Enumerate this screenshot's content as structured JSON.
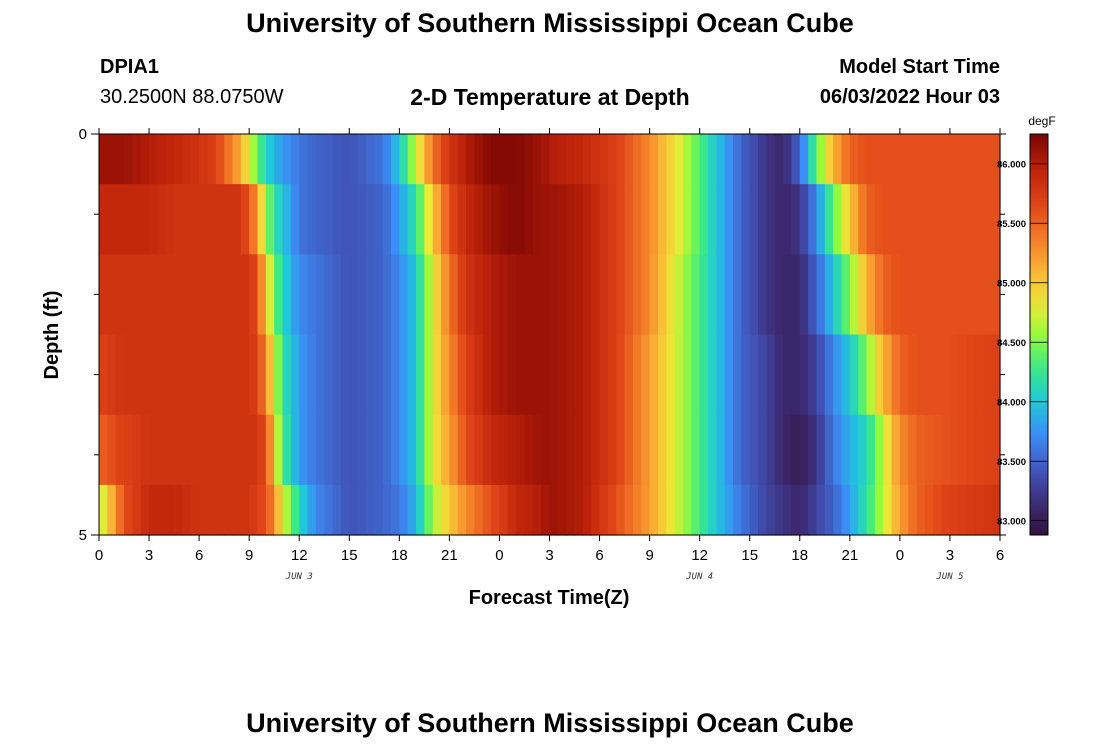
{
  "header": {
    "title": "University of Southern Mississippi Ocean Cube",
    "station_id": "DPIA1",
    "coordinates": "30.2500N  88.0750W",
    "plot_title": "2-D Temperature at Depth",
    "start_label": "Model Start Time",
    "start_time": "06/03/2022 Hour 03",
    "footer_title": "University of Southern Mississippi Ocean Cube"
  },
  "chart_data": {
    "type": "heatmap",
    "title": "2-D Temperature at Depth",
    "xlabel": "Forecast Time(Z)",
    "ylabel": "Depth (ft)",
    "x_tick_labels": [
      "0",
      "3",
      "6",
      "9",
      "12",
      "15",
      "18",
      "21",
      "0",
      "3",
      "6",
      "9",
      "12",
      "15",
      "18",
      "21",
      "0",
      "3",
      "6"
    ],
    "day_labels": [
      {
        "label": "JUN 3",
        "at_hour": 12
      },
      {
        "label": "JUN 4",
        "at_hour": 36
      },
      {
        "label": "JUN 5",
        "at_hour": 51
      }
    ],
    "x_range_hours": [
      0,
      54
    ],
    "y_range": [
      0,
      5
    ],
    "y_tick_labels": [
      "0",
      "5"
    ],
    "y_minor_ticks": [
      1,
      2,
      3,
      4
    ],
    "depth_layers": [
      0.25,
      1,
      2,
      3,
      4,
      4.75
    ],
    "colorbar": {
      "unit": "degF",
      "range": [
        82.88,
        86.25
      ],
      "tick_values": [
        83.0,
        83.5,
        84.0,
        84.5,
        85.0,
        85.5,
        86.0
      ],
      "tick_labels": [
        "83.000",
        "83.500",
        "84.000",
        "84.500",
        "85.000",
        "85.500",
        "86.000"
      ]
    },
    "series": [
      {
        "hour": 0,
        "temps": [
          86.1,
          85.9,
          85.8,
          85.7,
          85.5,
          84.6
        ]
      },
      {
        "hour": 1.5,
        "temps": [
          86.1,
          85.9,
          85.8,
          85.8,
          85.7,
          85.6
        ]
      },
      {
        "hour": 3,
        "temps": [
          86.0,
          85.9,
          85.8,
          85.8,
          85.8,
          85.9
        ]
      },
      {
        "hour": 4.5,
        "temps": [
          85.9,
          85.8,
          85.8,
          85.8,
          85.8,
          85.9
        ]
      },
      {
        "hour": 6,
        "temps": [
          85.8,
          85.8,
          85.8,
          85.8,
          85.8,
          85.8
        ]
      },
      {
        "hour": 7,
        "temps": [
          85.7,
          85.8,
          85.8,
          85.8,
          85.8,
          85.8
        ]
      },
      {
        "hour": 7.5,
        "temps": [
          85.5,
          85.8,
          85.8,
          85.8,
          85.8,
          85.8
        ]
      },
      {
        "hour": 8.3,
        "temps": [
          85.2,
          85.8,
          85.8,
          85.8,
          85.8,
          85.8
        ]
      },
      {
        "hour": 9,
        "temps": [
          84.8,
          85.6,
          85.8,
          85.8,
          85.8,
          85.8
        ]
      },
      {
        "hour": 9.5,
        "temps": [
          84.4,
          85.2,
          85.6,
          85.7,
          85.8,
          85.7
        ]
      },
      {
        "hour": 10,
        "temps": [
          84.1,
          84.6,
          85.0,
          85.3,
          85.6,
          85.6
        ]
      },
      {
        "hour": 10.5,
        "temps": [
          83.9,
          84.2,
          84.5,
          84.8,
          85.0,
          85.3
        ]
      },
      {
        "hour": 11,
        "temps": [
          83.8,
          84.0,
          84.1,
          84.2,
          84.3,
          84.8
        ]
      },
      {
        "hour": 12,
        "temps": [
          83.6,
          83.6,
          83.7,
          83.8,
          83.8,
          84.1
        ]
      },
      {
        "hour": 13,
        "temps": [
          83.5,
          83.5,
          83.6,
          83.6,
          83.6,
          83.7
        ]
      },
      {
        "hour": 15,
        "temps": [
          83.4,
          83.4,
          83.4,
          83.4,
          83.4,
          83.4
        ]
      },
      {
        "hour": 17,
        "temps": [
          83.6,
          83.5,
          83.5,
          83.5,
          83.5,
          83.5
        ]
      },
      {
        "hour": 18,
        "temps": [
          84.0,
          83.8,
          83.7,
          83.7,
          83.7,
          83.6
        ]
      },
      {
        "hour": 19,
        "temps": [
          84.7,
          84.2,
          84.0,
          84.0,
          84.0,
          83.9
        ]
      },
      {
        "hour": 20,
        "temps": [
          85.4,
          85.0,
          84.8,
          84.8,
          84.8,
          84.6
        ]
      },
      {
        "hour": 21,
        "temps": [
          85.8,
          85.6,
          85.4,
          85.3,
          85.2,
          85.0
        ]
      },
      {
        "hour": 22,
        "temps": [
          86.0,
          85.9,
          85.8,
          85.7,
          85.6,
          85.3
        ]
      },
      {
        "hour": 23.5,
        "temps": [
          86.2,
          86.1,
          86.0,
          86.0,
          85.9,
          85.6
        ]
      },
      {
        "hour": 25,
        "temps": [
          86.2,
          86.2,
          86.1,
          86.1,
          86.0,
          85.9
        ]
      },
      {
        "hour": 26.5,
        "temps": [
          86.1,
          86.1,
          86.1,
          86.1,
          86.1,
          86.0
        ]
      },
      {
        "hour": 27,
        "temps": [
          86.0,
          86.1,
          86.1,
          86.1,
          86.1,
          86.1
        ]
      },
      {
        "hour": 29,
        "temps": [
          85.9,
          86.0,
          86.0,
          86.0,
          86.0,
          86.0
        ]
      },
      {
        "hour": 31,
        "temps": [
          85.7,
          85.7,
          85.7,
          85.7,
          85.7,
          85.6
        ]
      },
      {
        "hour": 33,
        "temps": [
          85.3,
          85.3,
          85.3,
          85.2,
          85.2,
          85.2
        ]
      },
      {
        "hour": 35,
        "temps": [
          84.7,
          84.7,
          84.6,
          84.6,
          84.6,
          84.6
        ]
      },
      {
        "hour": 37,
        "temps": [
          84.0,
          84.0,
          84.0,
          84.0,
          84.0,
          84.0
        ]
      },
      {
        "hour": 38.5,
        "temps": [
          83.5,
          83.5,
          83.5,
          83.5,
          83.5,
          83.6
        ]
      },
      {
        "hour": 40,
        "temps": [
          83.2,
          83.2,
          83.2,
          83.3,
          83.3,
          83.3
        ]
      },
      {
        "hour": 41,
        "temps": [
          83.1,
          83.1,
          83.1,
          83.1,
          83.1,
          83.2
        ]
      },
      {
        "hour": 42,
        "temps": [
          83.5,
          83.2,
          83.1,
          83.1,
          83.0,
          83.1
        ]
      },
      {
        "hour": 43,
        "temps": [
          84.4,
          83.7,
          83.5,
          83.3,
          83.2,
          83.3
        ]
      },
      {
        "hour": 44,
        "temps": [
          85.1,
          84.4,
          84.0,
          83.7,
          83.6,
          83.5
        ]
      },
      {
        "hour": 45,
        "temps": [
          85.5,
          85.0,
          84.5,
          84.0,
          83.9,
          83.8
        ]
      },
      {
        "hour": 46,
        "temps": [
          85.6,
          85.5,
          85.1,
          84.5,
          84.1,
          84.2
        ]
      },
      {
        "hour": 47,
        "temps": [
          85.6,
          85.6,
          85.5,
          85.1,
          84.7,
          84.7
        ]
      },
      {
        "hour": 48,
        "temps": [
          85.6,
          85.6,
          85.6,
          85.5,
          85.3,
          85.2
        ]
      },
      {
        "hour": 49,
        "temps": [
          85.6,
          85.6,
          85.6,
          85.6,
          85.5,
          85.5
        ]
      },
      {
        "hour": 51,
        "temps": [
          85.6,
          85.6,
          85.6,
          85.6,
          85.6,
          85.7
        ]
      },
      {
        "hour": 54,
        "temps": [
          85.6,
          85.6,
          85.6,
          85.7,
          85.7,
          85.8
        ]
      }
    ]
  }
}
